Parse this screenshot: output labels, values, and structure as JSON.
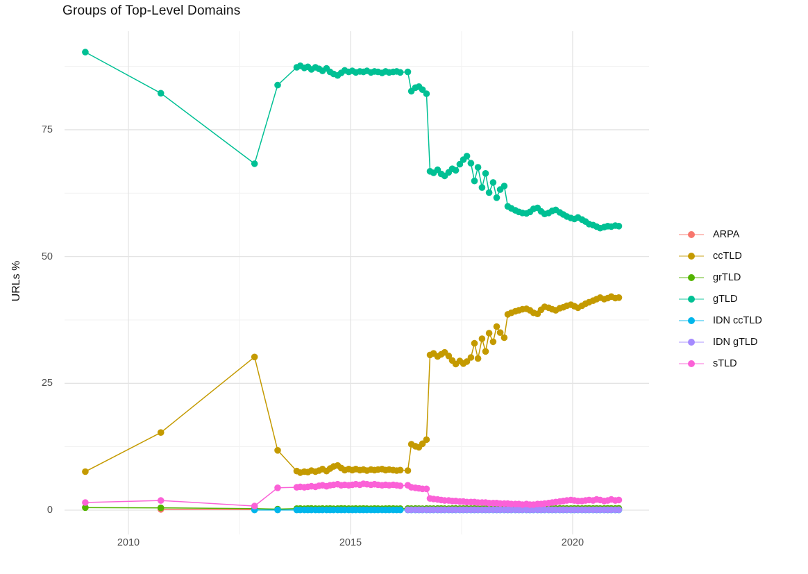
{
  "chart": {
    "title": "Groups of Top-Level Domains",
    "ylabel": "URLs %"
  },
  "chart_data": {
    "type": "line",
    "title": "Groups of Top-Level Domains",
    "xlabel": "",
    "ylabel": "URLs %",
    "grid": true,
    "legend_position": "right",
    "xlim": [
      2008.5625,
      2021.72
    ],
    "ylim": [
      -4.79,
      94.42
    ],
    "x_ticks": [
      2010,
      2015,
      2020
    ],
    "x_minor_ticks": [
      2012.5,
      2017.5
    ],
    "y_ticks": [
      0,
      25,
      50,
      75
    ],
    "y_minor_ticks": [
      12.5,
      37.5,
      62.5,
      87.5
    ],
    "x_dense": [
      2013.79,
      2013.87,
      2013.96,
      2014.04,
      2014.12,
      2014.21,
      2014.29,
      2014.37,
      2014.46,
      2014.54,
      2014.62,
      2014.71,
      2014.79,
      2014.87,
      2014.96,
      2015.04,
      2015.12,
      2015.21,
      2015.29,
      2015.37,
      2015.46,
      2015.54,
      2015.62,
      2015.71,
      2015.79,
      2015.87,
      2015.96,
      2016.04,
      2016.12,
      2016.29,
      2016.37,
      2016.46,
      2016.54,
      2016.62,
      2016.71,
      2016.79,
      2016.87,
      2016.96,
      2017.04,
      2017.12,
      2017.21,
      2017.29,
      2017.37,
      2017.46,
      2017.54,
      2017.62,
      2017.71,
      2017.79,
      2017.87,
      2017.96,
      2018.04,
      2018.12,
      2018.21,
      2018.29,
      2018.37,
      2018.46,
      2018.54,
      2018.62,
      2018.71,
      2018.79,
      2018.87,
      2018.96,
      2019.04,
      2019.12,
      2019.21,
      2019.29,
      2019.37,
      2019.46,
      2019.54,
      2019.62,
      2019.71,
      2019.79,
      2019.87,
      2019.96,
      2020.04,
      2020.12,
      2020.21,
      2020.29,
      2020.37,
      2020.46,
      2020.54,
      2020.62,
      2020.71,
      2020.79,
      2020.87,
      2020.96,
      2021.04
    ],
    "series": [
      {
        "name": "ARPA",
        "color": "#F8766D",
        "x_pre": [
          2010.73,
          2012.84
        ],
        "y_pre": [
          0.15,
          0.1
        ],
        "dense_start_index": 0,
        "y_dense": []
      },
      {
        "name": "ccTLD",
        "color": "#C49A00",
        "x_pre": [
          2009.03,
          2010.73,
          2012.84,
          2013.36
        ],
        "y_pre": [
          7.6,
          15.3,
          30.2,
          11.8
        ],
        "dense_start_index": 0,
        "y_dense": [
          7.7,
          7.4,
          7.6,
          7.5,
          7.8,
          7.6,
          7.8,
          8.1,
          7.7,
          8.2,
          8.6,
          8.8,
          8.3,
          7.9,
          8.1,
          7.9,
          8.1,
          7.9,
          8.0,
          7.8,
          8.0,
          7.9,
          8.0,
          8.1,
          7.9,
          8.0,
          7.9,
          7.8,
          7.9,
          7.8,
          13.0,
          12.6,
          12.4,
          13.1,
          13.9,
          30.6,
          30.9,
          30.3,
          30.7,
          31.1,
          30.4,
          29.5,
          28.8,
          29.4,
          28.9,
          29.3,
          30.1,
          32.9,
          29.9,
          33.8,
          31.3,
          34.9,
          33.2,
          36.2,
          35.0,
          34.0,
          38.6,
          38.9,
          39.2,
          39.4,
          39.6,
          39.7,
          39.4,
          38.9,
          38.7,
          39.5,
          40.1,
          39.9,
          39.6,
          39.4,
          39.8,
          40.0,
          40.3,
          40.5,
          40.2,
          39.9,
          40.3,
          40.7,
          41.0,
          41.3,
          41.6,
          41.9,
          41.6,
          41.8,
          42.1,
          41.8,
          41.9
        ]
      },
      {
        "name": "grTLD",
        "color": "#53B400",
        "x_pre": [
          2009.03,
          2010.73,
          2012.84,
          2013.36
        ],
        "y_pre": [
          0.5,
          0.45,
          0.3,
          0.2
        ],
        "dense_start_index": 0,
        "y_dense": [
          0.3,
          0.32,
          0.29,
          0.31,
          0.33,
          0.3,
          0.28,
          0.31,
          0.3,
          0.32,
          0.29,
          0.3,
          0.33,
          0.31,
          0.3,
          0.29,
          0.31,
          0.3,
          0.32,
          0.3,
          0.29,
          0.31,
          0.3,
          0.28,
          0.3,
          0.32,
          0.31,
          0.29,
          0.3,
          0.31,
          0.3,
          0.32,
          0.3,
          0.29,
          0.31,
          0.3,
          0.3,
          0.32,
          0.31,
          0.3,
          0.29,
          0.31,
          0.33,
          0.3,
          0.31,
          0.32,
          0.3,
          0.31,
          0.3,
          0.32,
          0.31,
          0.33,
          0.3,
          0.31,
          0.32,
          0.31,
          0.3,
          0.32,
          0.33,
          0.31,
          0.32,
          0.3,
          0.31,
          0.33,
          0.32,
          0.31,
          0.32,
          0.33,
          0.31,
          0.32,
          0.34,
          0.32,
          0.33,
          0.31,
          0.33,
          0.34,
          0.32,
          0.33,
          0.35,
          0.33,
          0.34,
          0.32,
          0.34,
          0.35,
          0.33,
          0.34,
          0.35
        ]
      },
      {
        "name": "gTLD",
        "color": "#00C094",
        "x_pre": [
          2009.03,
          2010.73,
          2012.84,
          2013.36
        ],
        "y_pre": [
          90.3,
          82.2,
          68.3,
          83.8
        ],
        "dense_start_index": 0,
        "y_dense": [
          87.3,
          87.6,
          87.2,
          87.4,
          86.9,
          87.3,
          87.0,
          86.6,
          87.1,
          86.4,
          86.0,
          85.7,
          86.2,
          86.7,
          86.4,
          86.6,
          86.3,
          86.5,
          86.4,
          86.6,
          86.3,
          86.5,
          86.4,
          86.2,
          86.5,
          86.3,
          86.4,
          86.5,
          86.3,
          86.4,
          82.6,
          83.3,
          83.5,
          82.9,
          82.1,
          66.8,
          66.5,
          67.1,
          66.3,
          65.9,
          66.6,
          67.3,
          67.0,
          68.2,
          69.1,
          69.8,
          68.4,
          64.9,
          67.6,
          63.6,
          66.4,
          62.6,
          64.6,
          61.6,
          63.2,
          63.9,
          59.9,
          59.5,
          59.1,
          58.8,
          58.6,
          58.5,
          58.8,
          59.4,
          59.6,
          58.9,
          58.4,
          58.6,
          59.0,
          59.2,
          58.7,
          58.3,
          57.9,
          57.6,
          57.4,
          57.7,
          57.3,
          56.9,
          56.4,
          56.2,
          55.9,
          55.6,
          55.8,
          56.0,
          55.9,
          56.1,
          56.0
        ]
      },
      {
        "name": "IDN ccTLD",
        "color": "#00B6EB",
        "x_pre": [
          2012.84,
          2013.36
        ],
        "y_pre": [
          0.04,
          0.04
        ],
        "dense_start_index": 0,
        "y_dense": [
          0.04,
          0.04,
          0.04,
          0.04,
          0.04,
          0.04,
          0.04,
          0.04,
          0.04,
          0.04,
          0.04,
          0.04,
          0.04,
          0.04,
          0.04,
          0.04,
          0.04,
          0.04,
          0.04,
          0.04,
          0.04,
          0.04,
          0.04,
          0.04,
          0.04,
          0.04,
          0.04,
          0.04,
          0.04,
          0.04,
          0.04,
          0.04,
          0.04,
          0.04,
          0.04,
          0.04,
          0.04,
          0.04,
          0.04,
          0.04,
          0.04,
          0.04,
          0.04,
          0.04,
          0.04,
          0.04,
          0.04,
          0.04,
          0.04,
          0.04,
          0.04,
          0.04,
          0.04,
          0.04,
          0.04,
          0.04,
          0.04,
          0.04,
          0.04,
          0.04,
          0.04,
          0.04,
          0.04,
          0.04,
          0.04,
          0.04,
          0.04,
          0.04,
          0.04,
          0.04,
          0.04,
          0.04,
          0.04,
          0.04,
          0.04,
          0.04,
          0.04,
          0.04,
          0.04,
          0.04,
          0.04,
          0.04,
          0.04,
          0.04,
          0.04,
          0.04,
          0.04
        ]
      },
      {
        "name": "IDN gTLD",
        "color": "#A58AFF",
        "x_pre": [],
        "y_pre": [],
        "dense_start_index": 29,
        "y_dense": [
          0.08,
          0.08,
          0.08,
          0.08,
          0.08,
          0.08,
          0.08,
          0.08,
          0.08,
          0.08,
          0.08,
          0.08,
          0.08,
          0.08,
          0.08,
          0.08,
          0.08,
          0.08,
          0.08,
          0.08,
          0.08,
          0.08,
          0.08,
          0.08,
          0.08,
          0.08,
          0.08,
          0.08,
          0.08,
          0.08,
          0.08,
          0.08,
          0.08,
          0.08,
          0.08,
          0.08,
          0.08,
          0.08,
          0.08,
          0.08,
          0.08,
          0.08,
          0.08,
          0.08,
          0.08,
          0.08,
          0.08,
          0.08,
          0.08,
          0.08,
          0.08,
          0.08,
          0.08,
          0.08,
          0.08,
          0.08,
          0.08,
          0.08
        ]
      },
      {
        "name": "sTLD",
        "color": "#FB61D7",
        "x_pre": [
          2009.03,
          2010.73,
          2012.84,
          2013.36
        ],
        "y_pre": [
          1.5,
          1.9,
          0.8,
          4.4
        ],
        "dense_start_index": 0,
        "y_dense": [
          4.5,
          4.6,
          4.5,
          4.6,
          4.7,
          4.6,
          4.8,
          4.9,
          4.7,
          4.9,
          5.0,
          5.1,
          4.9,
          5.0,
          4.9,
          5.0,
          5.1,
          5.0,
          5.2,
          5.1,
          5.0,
          5.1,
          5.0,
          4.9,
          5.0,
          4.9,
          5.0,
          4.9,
          4.8,
          4.9,
          4.5,
          4.4,
          4.3,
          4.2,
          4.2,
          2.3,
          2.2,
          2.1,
          2.0,
          1.9,
          1.9,
          1.8,
          1.8,
          1.7,
          1.7,
          1.6,
          1.6,
          1.6,
          1.5,
          1.5,
          1.5,
          1.4,
          1.4,
          1.4,
          1.3,
          1.3,
          1.3,
          1.2,
          1.2,
          1.2,
          1.1,
          1.2,
          1.1,
          1.1,
          1.2,
          1.2,
          1.3,
          1.4,
          1.5,
          1.6,
          1.7,
          1.8,
          1.9,
          2.0,
          1.9,
          1.8,
          1.8,
          1.9,
          2.0,
          1.9,
          2.1,
          2.0,
          1.8,
          1.9,
          2.1,
          1.9,
          2.0
        ]
      }
    ]
  }
}
